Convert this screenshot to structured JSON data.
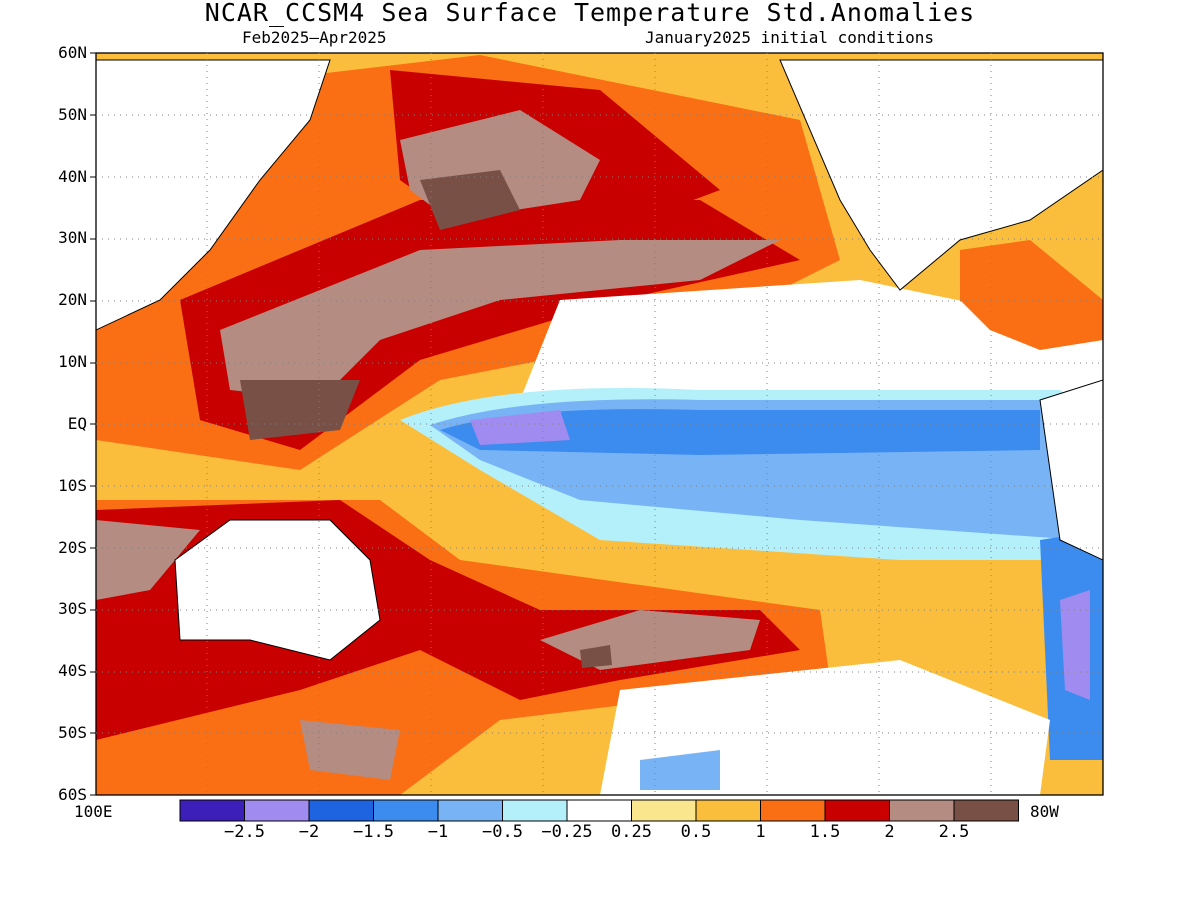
{
  "title": "NCAR_CCSM4 Sea Surface Temperature Std.Anomalies",
  "period": "Feb2025–Apr2025",
  "init": "January2025 initial conditions",
  "lat_labels": [
    "60N",
    "50N",
    "40N",
    "30N",
    "20N",
    "10N",
    "EQ",
    "10S",
    "20S",
    "30S",
    "40S",
    "50S",
    "60S"
  ],
  "lon_labels": {
    "west": "100E",
    "east": "80W"
  },
  "colorbar": {
    "colors": [
      "#3b1fb8",
      "#a08cf0",
      "#1e64e0",
      "#3c8cf0",
      "#78b4f5",
      "#b4f0fa",
      "#ffffff",
      "#fae68c",
      "#fabe3c",
      "#fa6e14",
      "#c80000",
      "#b48c82",
      "#785046"
    ],
    "labels": [
      "−2.5",
      "−2",
      "−1.5",
      "−1",
      "−0.5",
      "−0.25",
      "0.25",
      "0.5",
      "1",
      "1.5",
      "2",
      "2.5"
    ]
  }
}
